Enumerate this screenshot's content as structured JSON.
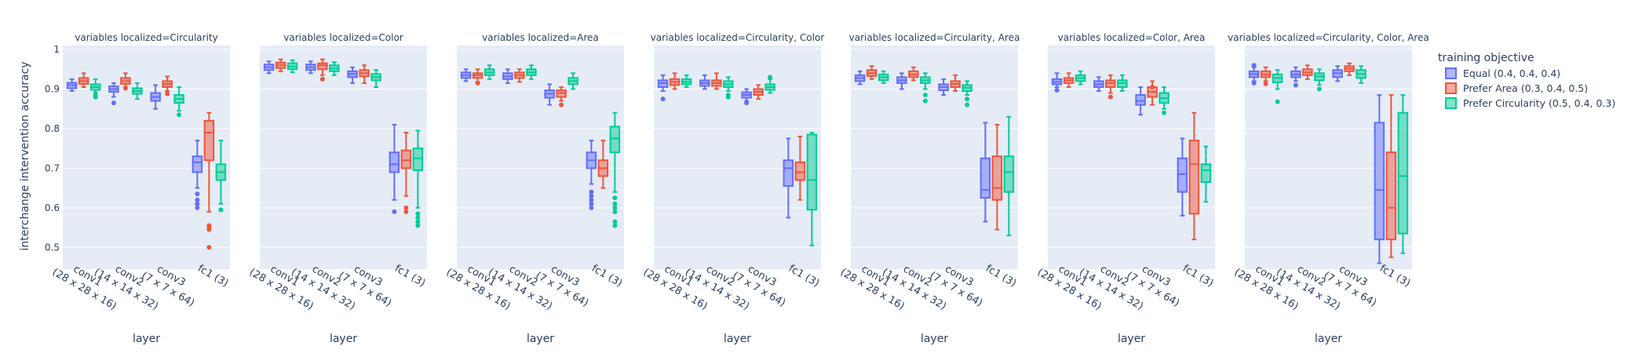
{
  "chart_data": {
    "type": "box",
    "y_axis": {
      "label": "interchange intervention accuracy",
      "ticks": [
        0.5,
        0.6,
        0.7,
        0.8,
        0.9,
        1
      ],
      "range": [
        0.445,
        1.01
      ]
    },
    "x_axis": {
      "label": "layer",
      "categories": [
        {
          "line1": "conv1",
          "line2": "(28 x 28 x 16)"
        },
        {
          "line1": "conv2",
          "line2": "(14 x 14 x 32)"
        },
        {
          "line1": "conv3",
          "line2": "(7 x 7 x 64)"
        },
        {
          "line1": "fc1 (3)",
          "line2": ""
        }
      ]
    },
    "legend": {
      "title": "training objective",
      "position": "right",
      "items": [
        {
          "name": "Equal (0.4, 0.4, 0.4)",
          "color": "#636efa"
        },
        {
          "name": "Prefer Area (0.3, 0.4, 0.5)",
          "color": "#ef553b"
        },
        {
          "name": "Prefer Circularity (0.5, 0.4, 0.3)",
          "color": "#00cc96"
        }
      ]
    },
    "facets": [
      {
        "title": "variables localized=Circularity",
        "boxes": [
          [
            [
              0.895,
              0.902,
              0.91,
              0.916,
              0.925,
              []
            ],
            [
              0.905,
              0.913,
              0.92,
              0.928,
              0.94,
              []
            ],
            [
              0.892,
              0.898,
              0.905,
              0.912,
              0.925,
              [
                0.885,
                0.88
              ]
            ]
          ],
          [
            [
              0.88,
              0.893,
              0.9,
              0.907,
              0.915,
              [
                0.865
              ]
            ],
            [
              0.905,
              0.913,
              0.92,
              0.928,
              0.94,
              [
                0.902
              ]
            ],
            [
              0.875,
              0.888,
              0.895,
              0.902,
              0.915,
              []
            ]
          ],
          [
            [
              0.85,
              0.87,
              0.88,
              0.89,
              0.91,
              []
            ],
            [
              0.895,
              0.905,
              0.913,
              0.92,
              0.932,
              [
                0.888
              ]
            ],
            [
              0.845,
              0.865,
              0.875,
              0.885,
              0.905,
              [
                0.835
              ]
            ]
          ],
          [
            [
              0.65,
              0.69,
              0.715,
              0.73,
              0.77,
              [
                0.635,
                0.62,
                0.61,
                0.6
              ]
            ],
            [
              0.59,
              0.72,
              0.79,
              0.82,
              0.84,
              [
                0.555,
                0.55,
                0.545,
                0.5
              ]
            ],
            [
              0.61,
              0.67,
              0.69,
              0.71,
              0.77,
              [
                0.595
              ]
            ]
          ]
        ]
      },
      {
        "title": "variables localized=Color",
        "boxes": [
          [
            [
              0.94,
              0.948,
              0.955,
              0.962,
              0.97,
              []
            ],
            [
              0.945,
              0.953,
              0.96,
              0.967,
              0.975,
              []
            ],
            [
              0.942,
              0.95,
              0.957,
              0.965,
              0.973,
              []
            ]
          ],
          [
            [
              0.94,
              0.948,
              0.955,
              0.962,
              0.97,
              []
            ],
            [
              0.935,
              0.95,
              0.96,
              0.965,
              0.975,
              [
                0.925
              ]
            ],
            [
              0.935,
              0.945,
              0.952,
              0.96,
              0.968,
              []
            ]
          ],
          [
            [
              0.915,
              0.93,
              0.938,
              0.945,
              0.955,
              []
            ],
            [
              0.915,
              0.932,
              0.94,
              0.948,
              0.96,
              []
            ],
            [
              0.905,
              0.922,
              0.93,
              0.938,
              0.948,
              []
            ]
          ],
          [
            [
              0.62,
              0.69,
              0.71,
              0.74,
              0.81,
              [
                0.59
              ]
            ],
            [
              0.63,
              0.7,
              0.72,
              0.745,
              0.79,
              [
                0.6,
                0.59
              ]
            ],
            [
              0.6,
              0.695,
              0.725,
              0.75,
              0.795,
              [
                0.585,
                0.575,
                0.565,
                0.555
              ]
            ]
          ]
        ]
      },
      {
        "title": "variables localized=Area",
        "boxes": [
          [
            [
              0.92,
              0.928,
              0.935,
              0.942,
              0.95,
              []
            ],
            [
              0.918,
              0.928,
              0.935,
              0.94,
              0.95,
              [
                0.915
              ]
            ],
            [
              0.925,
              0.935,
              0.942,
              0.95,
              0.96,
              []
            ]
          ],
          [
            [
              0.915,
              0.925,
              0.932,
              0.94,
              0.95,
              []
            ],
            [
              0.918,
              0.928,
              0.935,
              0.942,
              0.95,
              []
            ],
            [
              0.925,
              0.935,
              0.942,
              0.95,
              0.96,
              []
            ]
          ],
          [
            [
              0.86,
              0.878,
              0.888,
              0.897,
              0.912,
              []
            ],
            [
              0.87,
              0.88,
              0.89,
              0.897,
              0.905,
              [
                0.86
              ]
            ],
            [
              0.9,
              0.912,
              0.92,
              0.928,
              0.94,
              []
            ]
          ],
          [
            [
              0.66,
              0.7,
              0.72,
              0.74,
              0.77,
              [
                0.64,
                0.63,
                0.62,
                0.61,
                0.6
              ]
            ],
            [
              0.65,
              0.68,
              0.7,
              0.72,
              0.77,
              []
            ],
            [
              0.64,
              0.74,
              0.775,
              0.805,
              0.84,
              [
                0.625,
                0.61,
                0.6,
                0.59,
                0.565,
                0.555
              ]
            ]
          ]
        ]
      },
      {
        "title": "variables localized=Circularity, Color",
        "boxes": [
          [
            [
              0.895,
              0.905,
              0.915,
              0.922,
              0.935,
              [
                0.875
              ]
            ],
            [
              0.9,
              0.91,
              0.918,
              0.925,
              0.94,
              []
            ],
            [
              0.905,
              0.912,
              0.918,
              0.925,
              0.935,
              []
            ]
          ],
          [
            [
              0.9,
              0.908,
              0.915,
              0.922,
              0.935,
              []
            ],
            [
              0.9,
              0.908,
              0.915,
              0.922,
              0.94,
              []
            ],
            [
              0.895,
              0.905,
              0.912,
              0.92,
              0.93,
              [
                0.885,
                0.88
              ]
            ]
          ],
          [
            [
              0.87,
              0.878,
              0.885,
              0.892,
              0.9,
              [
                0.865
              ]
            ],
            [
              0.875,
              0.885,
              0.893,
              0.9,
              0.91,
              []
            ],
            [
              0.89,
              0.898,
              0.905,
              0.912,
              0.925,
              [
                0.93
              ]
            ]
          ],
          [
            [
              0.575,
              0.655,
              0.7,
              0.72,
              0.775,
              []
            ],
            [
              0.62,
              0.67,
              0.69,
              0.715,
              0.78,
              []
            ],
            [
              0.505,
              0.595,
              0.67,
              0.785,
              0.79,
              []
            ]
          ]
        ]
      },
      {
        "title": "variables localized=Circularity, Area",
        "boxes": [
          [
            [
              0.912,
              0.92,
              0.928,
              0.935,
              0.945,
              []
            ],
            [
              0.925,
              0.933,
              0.94,
              0.948,
              0.958,
              []
            ],
            [
              0.915,
              0.922,
              0.93,
              0.937,
              0.945,
              []
            ]
          ],
          [
            [
              0.9,
              0.915,
              0.922,
              0.93,
              0.94,
              []
            ],
            [
              0.922,
              0.93,
              0.937,
              0.945,
              0.955,
              []
            ],
            [
              0.9,
              0.915,
              0.922,
              0.93,
              0.94,
              [
                0.885,
                0.87
              ]
            ]
          ],
          [
            [
              0.885,
              0.897,
              0.905,
              0.912,
              0.925,
              []
            ],
            [
              0.895,
              0.905,
              0.913,
              0.92,
              0.935,
              []
            ],
            [
              0.885,
              0.895,
              0.903,
              0.91,
              0.92,
              [
                0.875,
                0.86
              ]
            ]
          ],
          [
            [
              0.565,
              0.625,
              0.645,
              0.725,
              0.815,
              []
            ],
            [
              0.545,
              0.62,
              0.65,
              0.73,
              0.81,
              []
            ],
            [
              0.53,
              0.64,
              0.69,
              0.73,
              0.83,
              []
            ]
          ]
        ]
      },
      {
        "title": "variables localized=Color, Area",
        "boxes": [
          [
            [
              0.905,
              0.912,
              0.918,
              0.925,
              0.94,
              [
                0.897
              ]
            ],
            [
              0.905,
              0.915,
              0.922,
              0.928,
              0.94,
              []
            ],
            [
              0.912,
              0.92,
              0.928,
              0.935,
              0.945,
              []
            ]
          ],
          [
            [
              0.895,
              0.905,
              0.912,
              0.92,
              0.93,
              []
            ],
            [
              0.89,
              0.905,
              0.915,
              0.922,
              0.935,
              [
                0.88
              ]
            ],
            [
              0.895,
              0.905,
              0.915,
              0.922,
              0.935,
              []
            ]
          ],
          [
            [
              0.835,
              0.86,
              0.87,
              0.885,
              0.905,
              []
            ],
            [
              0.86,
              0.88,
              0.893,
              0.905,
              0.92,
              [
                0.905
              ]
            ],
            [
              0.85,
              0.865,
              0.877,
              0.89,
              0.905,
              [
                0.84
              ]
            ]
          ],
          [
            [
              0.58,
              0.64,
              0.685,
              0.725,
              0.775,
              []
            ],
            [
              0.52,
              0.585,
              0.71,
              0.77,
              0.84,
              []
            ],
            [
              0.615,
              0.665,
              0.695,
              0.71,
              0.755,
              []
            ]
          ]
        ]
      },
      {
        "title": "variables localized=Circularity, Color, Area",
        "boxes": [
          [
            [
              0.92,
              0.93,
              0.938,
              0.945,
              0.955,
              [
                0.96,
                0.915
              ]
            ],
            [
              0.92,
              0.93,
              0.937,
              0.945,
              0.955,
              [
                0.913
              ]
            ],
            [
              0.9,
              0.917,
              0.928,
              0.937,
              0.948,
              [
                0.868
              ]
            ]
          ],
          [
            [
              0.92,
              0.93,
              0.937,
              0.945,
              0.955,
              [
                0.91
              ]
            ],
            [
              0.925,
              0.935,
              0.942,
              0.95,
              0.96,
              []
            ],
            [
              0.91,
              0.922,
              0.932,
              0.94,
              0.95,
              [
                0.9
              ]
            ]
          ],
          [
            [
              0.92,
              0.93,
              0.94,
              0.948,
              0.958,
              []
            ],
            [
              0.935,
              0.945,
              0.952,
              0.958,
              0.965,
              []
            ],
            [
              0.915,
              0.928,
              0.938,
              0.948,
              0.958,
              []
            ]
          ],
          [
            [
              0.46,
              0.52,
              0.645,
              0.815,
              0.885,
              []
            ],
            [
              0.475,
              0.52,
              0.6,
              0.74,
              0.885,
              []
            ],
            [
              0.485,
              0.535,
              0.68,
              0.84,
              0.885,
              []
            ]
          ]
        ]
      }
    ]
  }
}
